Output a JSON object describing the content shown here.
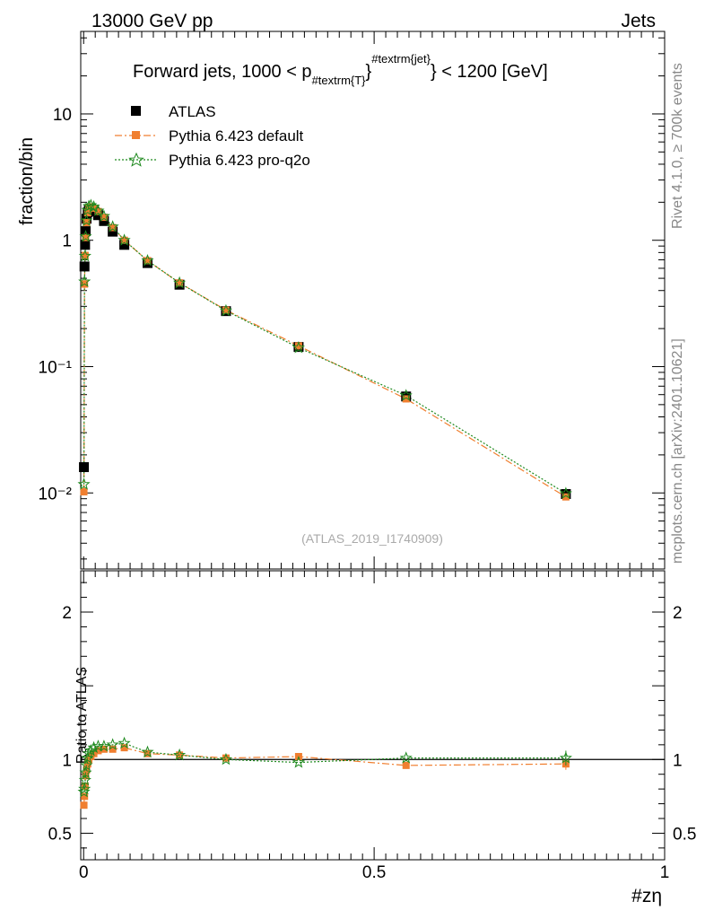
{
  "header": {
    "left": "13000 GeV pp",
    "right": "Jets"
  },
  "side_labels": {
    "rivet": "Rivet 4.1.0, ≥ 700k events",
    "source": "mcplots.cern.ch [arXiv:2401.10621]"
  },
  "watermark": "(ATLAS_2019_I1740909)",
  "chart_data": [
    {
      "type": "scatter",
      "panel": "main",
      "title": {
        "prefix": "Forward jets, 1000 < p",
        "sub": "#textrm{T}",
        "sup": "#textrm{jet}",
        "suffix": "} < 1200 [GeV]"
      },
      "ylabel": "fraction/bin",
      "xlabel": "#zη",
      "yscale": "log",
      "ylim": [
        0.0025,
        45
      ],
      "xlim": [
        -0.005,
        1.0
      ],
      "y_ticks": [
        {
          "value": 10,
          "label": "10"
        },
        {
          "value": 1,
          "label": "1"
        },
        {
          "value": 0.1,
          "label": "10⁻¹"
        },
        {
          "value": 0.01,
          "label": "10⁻²"
        }
      ],
      "legend": {
        "position": "top-left",
        "entries": [
          "ATLAS",
          "Pythia 6.423 default",
          "Pythia 6.423 pro-q2o"
        ]
      },
      "x": [
        0.0005,
        0.0015,
        0.0025,
        0.0035,
        0.005,
        0.007,
        0.009,
        0.0125,
        0.0175,
        0.025,
        0.035,
        0.05,
        0.07,
        0.11,
        0.165,
        0.245,
        0.37,
        0.555,
        0.83
      ],
      "series": [
        {
          "name": "ATLAS",
          "color": "#000000",
          "marker": "square",
          "values": [
            0.016,
            0.62,
            0.92,
            1.18,
            1.48,
            1.66,
            1.76,
            1.78,
            1.7,
            1.58,
            1.42,
            1.17,
            0.92,
            0.66,
            0.445,
            0.275,
            0.143,
            0.058,
            0.0098
          ]
        },
        {
          "name": "Pythia 6.423 default",
          "color": "#f07f30",
          "marker": "square",
          "dash": "dashdot",
          "values": [
            0.0102,
            0.45,
            0.76,
            1.05,
            1.38,
            1.65,
            1.79,
            1.84,
            1.79,
            1.69,
            1.52,
            1.26,
            1.0,
            0.69,
            0.46,
            0.28,
            0.146,
            0.0555,
            0.0093
          ]
        },
        {
          "name": "Pythia 6.423 pro-q2o",
          "color": "#1f8a1f",
          "marker": "star",
          "dash": "dotted",
          "values": [
            0.0117,
            0.47,
            0.75,
            1.07,
            1.43,
            1.73,
            1.86,
            1.89,
            1.84,
            1.71,
            1.55,
            1.28,
            1.0,
            0.69,
            0.46,
            0.277,
            0.141,
            0.059,
            0.0099
          ]
        }
      ]
    },
    {
      "type": "line",
      "panel": "ratio",
      "ylabel": "Ratio to ATLAS",
      "xlabel": "#zη",
      "ylim": [
        0.32,
        2.28
      ],
      "xlim": [
        -0.005,
        1.0
      ],
      "y_ticks": [
        {
          "value": 0.5,
          "label": "0.5"
        },
        {
          "value": 1,
          "label": "1"
        },
        {
          "value": 2,
          "label": "2"
        }
      ],
      "x_ticks": [
        {
          "value": 0,
          "label": "0"
        },
        {
          "value": 0.5,
          "label": "0.5"
        },
        {
          "value": 1,
          "label": "1"
        }
      ],
      "x": [
        0.0005,
        0.0015,
        0.0025,
        0.0035,
        0.005,
        0.007,
        0.009,
        0.0125,
        0.0175,
        0.025,
        0.035,
        0.05,
        0.07,
        0.11,
        0.165,
        0.245,
        0.37,
        0.555,
        0.83
      ],
      "series": [
        {
          "name": "Pythia 6.423 default",
          "color": "#f07f30",
          "marker": "square",
          "dash": "dashdot",
          "values": [
            0.69,
            0.75,
            0.82,
            0.89,
            0.93,
            0.97,
            1.0,
            1.02,
            1.04,
            1.06,
            1.07,
            1.07,
            1.08,
            1.04,
            1.03,
            1.01,
            1.02,
            0.96,
            0.97
          ],
          "errors": [
            0.0,
            0.0,
            0.0,
            0.0,
            0.0,
            0.0,
            0.0,
            0.0,
            0.0,
            0.0,
            0.0,
            0.0,
            0.0,
            0.0,
            0.0,
            0.0,
            0.0,
            0.0,
            0.04
          ]
        },
        {
          "name": "Pythia 6.423 pro-q2o",
          "color": "#1f8a1f",
          "marker": "star",
          "dash": "dotted",
          "values": [
            0.78,
            0.8,
            0.86,
            0.91,
            0.96,
            1.01,
            1.04,
            1.06,
            1.08,
            1.09,
            1.09,
            1.1,
            1.11,
            1.05,
            1.03,
            1.0,
            0.98,
            1.01,
            1.01
          ],
          "errors": [
            0.0,
            0.0,
            0.0,
            0.0,
            0.0,
            0.0,
            0.0,
            0.0,
            0.0,
            0.0,
            0.0,
            0.0,
            0.0,
            0.0,
            0.0,
            0.0,
            0.0,
            0.0,
            0.05
          ]
        }
      ]
    }
  ]
}
